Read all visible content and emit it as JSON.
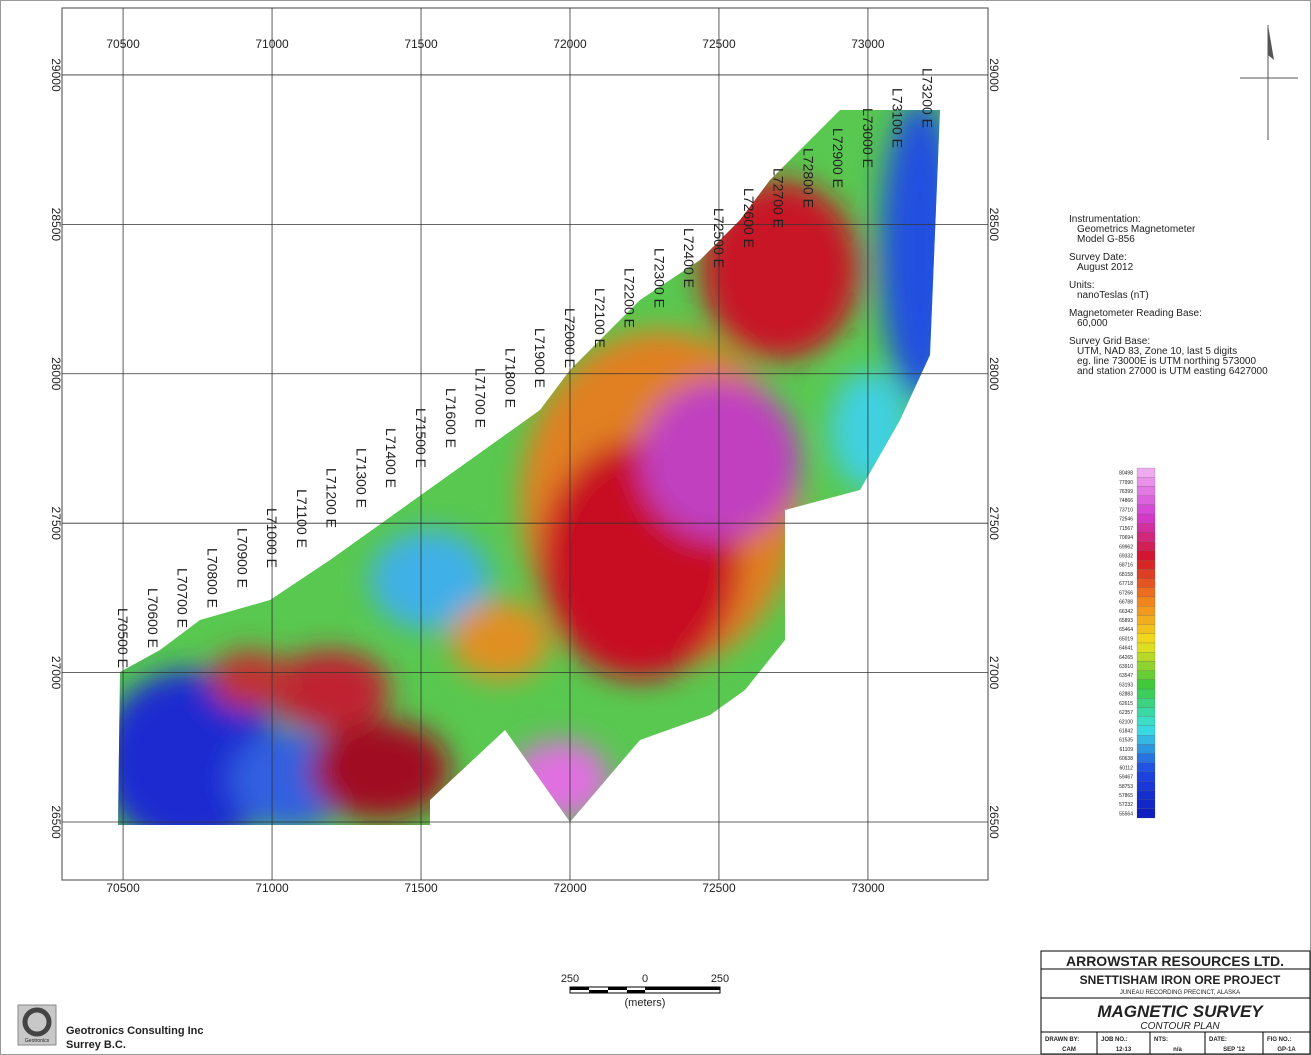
{
  "map": {
    "easting_ticks": [
      70500,
      71000,
      71500,
      72000,
      72500,
      73000
    ],
    "northing_ticks": [
      26500,
      27000,
      27500,
      28000,
      28500,
      29000
    ],
    "xlim": [
      70295,
      73403
    ],
    "ylim": [
      26306,
      29224
    ],
    "survey_lines": [
      "L70500 E",
      "L70600 E",
      "L70700 E",
      "L70800 E",
      "L70900 E",
      "L71000 E",
      "L71100 E",
      "L71200 E",
      "L71300 E",
      "L71400 E",
      "L71500 E",
      "L71600 E",
      "L71700 E",
      "L71800 E",
      "L71900 E",
      "L72000 E",
      "L72100 E",
      "L72200 E",
      "L72300 E",
      "L72400 E",
      "L72500 E",
      "L72600 E",
      "L72700 E",
      "L72800 E",
      "L72900 E",
      "L73000 E",
      "L73100 E",
      "L73200 E"
    ]
  },
  "notes": [
    {
      "heading": "Instrumentation:",
      "lines": [
        "Geometrics Magnetometer",
        "Model G-856"
      ]
    },
    {
      "heading": "Survey Date:",
      "lines": [
        "August 2012"
      ]
    },
    {
      "heading": "Units:",
      "lines": [
        "nanoTeslas (nT)"
      ]
    },
    {
      "heading": "Magnetometer Reading Base:",
      "lines": [
        "60,000"
      ]
    },
    {
      "heading": "Survey Grid Base:",
      "lines": [
        "UTM, NAD 83, Zone 10, last 5 digits",
        "eg. line 73000E is UTM northing 573000",
        "and station 27000 is UTM easting 6427000"
      ]
    }
  ],
  "color_scale": [
    80498,
    77990,
    76399,
    74866,
    73710,
    72546,
    71567,
    70694,
    69962,
    69332,
    68716,
    68158,
    67718,
    67266,
    66788,
    66342,
    65893,
    65464,
    65019,
    64641,
    64265,
    63910,
    63547,
    63193,
    62883,
    62615,
    62357,
    62100,
    61842,
    61535,
    61109,
    60638,
    60112,
    59467,
    58753,
    57865,
    57232,
    55564
  ],
  "scale_bar": {
    "left": "250",
    "middle": "0",
    "right": "250",
    "unit": "(meters)"
  },
  "company": {
    "logo": "Geotronics",
    "name": "Geotronics Consulting Inc",
    "location": "Surrey B.C."
  },
  "title_block": {
    "company": "ARROWSTAR RESOURCES LTD.",
    "project": "SNETTISHAM IRON ORE PROJECT",
    "precinct": "JUNEAU RECORDING PRECINCT, ALASKA",
    "title": "MAGNETIC SURVEY",
    "subtitle": "CONTOUR PLAN",
    "fields": [
      {
        "label": "DRAWN BY:",
        "value": "CAM"
      },
      {
        "label": "JOB NO.:",
        "value": "12-13"
      },
      {
        "label": "NTS:",
        "value": "n/a"
      },
      {
        "label": "DATE:",
        "value": "SEP '12"
      },
      {
        "label": "FIG NO.:",
        "value": "GP-1A"
      }
    ]
  }
}
